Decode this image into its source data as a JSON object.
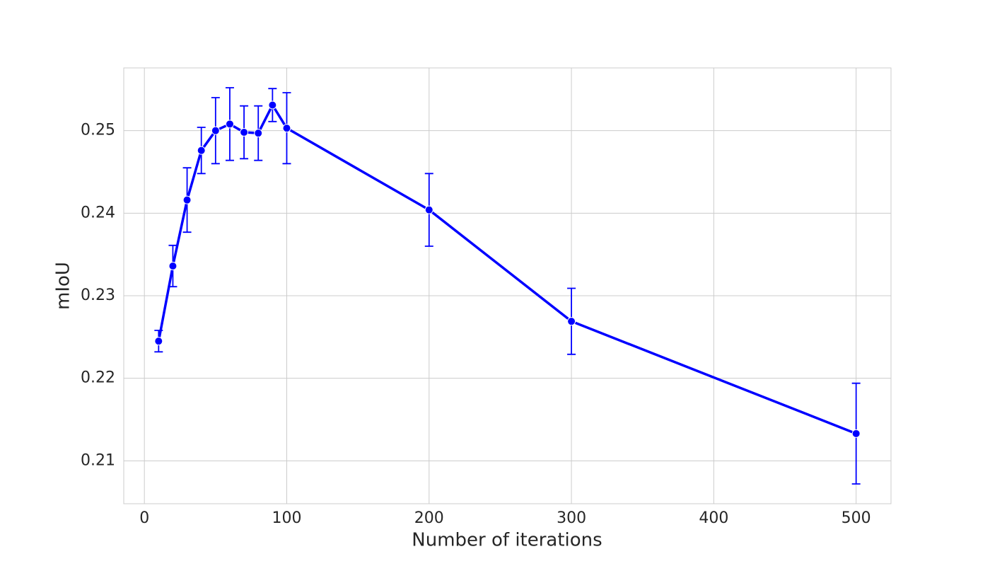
{
  "chart_data": {
    "type": "line",
    "x_label": "Number of iterations",
    "y_label": "mIoU",
    "x": [
      10,
      20,
      30,
      40,
      50,
      60,
      70,
      80,
      90,
      100,
      200,
      300,
      500
    ],
    "values": [
      0.2245,
      0.2336,
      0.2416,
      0.2476,
      0.25,
      0.2508,
      0.2498,
      0.2497,
      0.2531,
      0.2503,
      0.2404,
      0.2269,
      0.2133
    ],
    "errors": [
      0.0013,
      0.0025,
      0.0039,
      0.0028,
      0.004,
      0.0044,
      0.0032,
      0.0033,
      0.002,
      0.0043,
      0.0044,
      0.004,
      0.0061
    ],
    "color": "#0000ff",
    "xlim": [
      -14.5,
      524.5
    ],
    "ylim": [
      0.2048,
      0.2576
    ],
    "xticks": [
      0,
      100,
      200,
      300,
      400,
      500
    ],
    "yticks": [
      0.21,
      0.22,
      0.23,
      0.24,
      0.25
    ],
    "grid": true
  }
}
